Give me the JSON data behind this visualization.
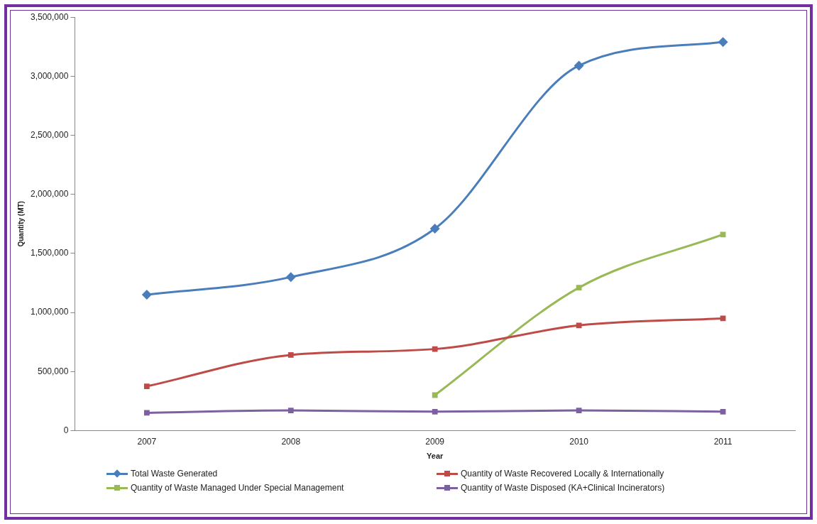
{
  "chart_data": {
    "type": "line",
    "xlabel": "Year",
    "ylabel": "Quantity (MT)",
    "categories": [
      "2007",
      "2008",
      "2009",
      "2010",
      "2011"
    ],
    "ylim": [
      0,
      3500000
    ],
    "yticks": [
      0,
      {
        "value": 500000,
        "label": "500,000"
      },
      {
        "value": 1000000,
        "label": "1,000,000"
      },
      {
        "value": 1500000,
        "label": "1,500,000"
      },
      {
        "value": 2000000,
        "label": "2,000,000"
      },
      {
        "value": 2500000,
        "label": "2,500,000"
      },
      {
        "value": 3000000,
        "label": "3,000,000"
      },
      {
        "value": 3500000,
        "label": "3,500,000"
      }
    ],
    "grid": false,
    "legend": "bottom",
    "series": [
      {
        "name": "Total Waste Generated",
        "color": "#4a7ebb",
        "marker": "diamond",
        "values": [
          1150000,
          1300000,
          1710000,
          3090000,
          3290000
        ]
      },
      {
        "name": "Quantity of Waste Recovered Locally & Internationally",
        "color": "#be4b48",
        "marker": "square",
        "values": [
          375000,
          640000,
          690000,
          890000,
          950000
        ]
      },
      {
        "name": "Quantity of Waste Managed Under Special Management",
        "color": "#98b954",
        "marker": "square",
        "values": [
          null,
          null,
          300000,
          1210000,
          1660000
        ]
      },
      {
        "name": "Quantity of Waste Disposed (KA+Clinical Incinerators)",
        "color": "#7d60a0",
        "marker": "square",
        "values": [
          150000,
          170000,
          160000,
          170000,
          160000
        ]
      }
    ]
  }
}
